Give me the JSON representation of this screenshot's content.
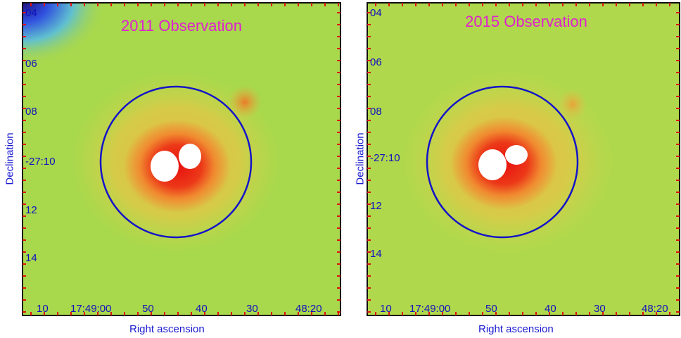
{
  "colors": {
    "background_field": "#a8d84c",
    "source_core": "#ffffff",
    "source_ring": "#e81010",
    "halo": "#f0a030",
    "region_circle": "#1414c8",
    "title": "#e020d0",
    "ticks": "#e01010",
    "labels": "#1a1ad0",
    "frame": "#101010"
  },
  "panels": [
    {
      "title": "2011 Observation",
      "ylabel": "Declination",
      "xlabel": "Right ascension",
      "dec_ticks": [
        "04",
        "06",
        "08",
        "-27:10",
        "12",
        "14"
      ],
      "ra_ticks": [
        "10",
        "17:49:00",
        "50",
        "40",
        "30",
        "48:20"
      ]
    },
    {
      "title": "2015 Observation",
      "ylabel": "Declination",
      "xlabel": "Right ascension",
      "dec_ticks": [
        "04",
        "06",
        "08",
        "-27:10",
        "12",
        "14"
      ],
      "ra_ticks": [
        "10",
        "17:49:00",
        "50",
        "40",
        "30",
        "48:20"
      ]
    }
  ]
}
